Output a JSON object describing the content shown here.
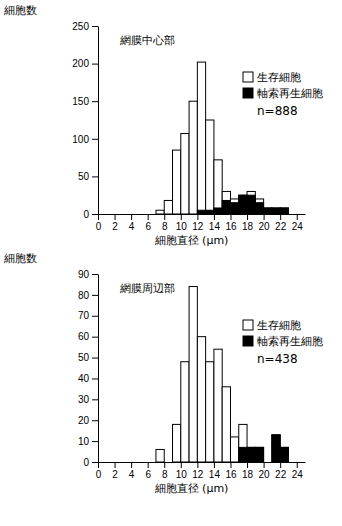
{
  "chart_data": [
    {
      "type": "histogram",
      "title": "網膜中心部",
      "x_label": "細胞直径 (μm)",
      "y_label": "細胞数",
      "bins": [
        7,
        8,
        9,
        10,
        11,
        12,
        13,
        14,
        15,
        16,
        17,
        18,
        19,
        20,
        21,
        22,
        23
      ],
      "series": [
        {
          "name": "生存細胞",
          "color": "#ffffff",
          "values": [
            5,
            18,
            85,
            107,
            150,
            202,
            125,
            72,
            30,
            20,
            25,
            30,
            20,
            8,
            8,
            8
          ]
        },
        {
          "name": "軸索再生細胞",
          "color": "#000000",
          "values": [
            0,
            0,
            0,
            0,
            0,
            5,
            5,
            8,
            18,
            15,
            25,
            25,
            15,
            8,
            8,
            8
          ]
        }
      ],
      "annotation": "n=888",
      "xlim": [
        0,
        25
      ],
      "xticks": [
        0,
        2,
        4,
        6,
        8,
        10,
        12,
        14,
        16,
        18,
        20,
        22,
        24
      ],
      "ylim": [
        0,
        250
      ],
      "yticks": [
        0,
        50,
        100,
        150,
        200,
        250
      ],
      "legend": "upper right",
      "grid": false
    },
    {
      "type": "histogram",
      "title": "網膜周辺部",
      "x_label": "細胞直径 (μm)",
      "y_label": "細胞数",
      "bins": [
        7,
        8,
        9,
        10,
        11,
        12,
        13,
        14,
        15,
        16,
        17,
        18,
        19,
        20,
        21,
        22,
        23
      ],
      "series": [
        {
          "name": "生存細胞",
          "color": "#ffffff",
          "values": [
            6,
            0,
            18,
            48,
            84,
            60,
            48,
            54,
            36,
            12,
            18,
            7,
            7,
            0,
            13,
            7
          ]
        },
        {
          "name": "軸索再生細胞",
          "color": "#000000",
          "values": [
            0,
            0,
            0,
            0,
            0,
            0,
            0,
            0,
            0,
            0,
            7,
            7,
            7,
            0,
            13,
            7
          ]
        }
      ],
      "annotation": "n=438",
      "xlim": [
        0,
        25
      ],
      "xticks": [
        0,
        2,
        4,
        6,
        8,
        10,
        12,
        14,
        16,
        18,
        20,
        22,
        24
      ],
      "ylim": [
        0,
        90
      ],
      "yticks": [
        0,
        10,
        20,
        30,
        40,
        50,
        60,
        70,
        80,
        90
      ],
      "legend": "upper right",
      "grid": false
    }
  ]
}
